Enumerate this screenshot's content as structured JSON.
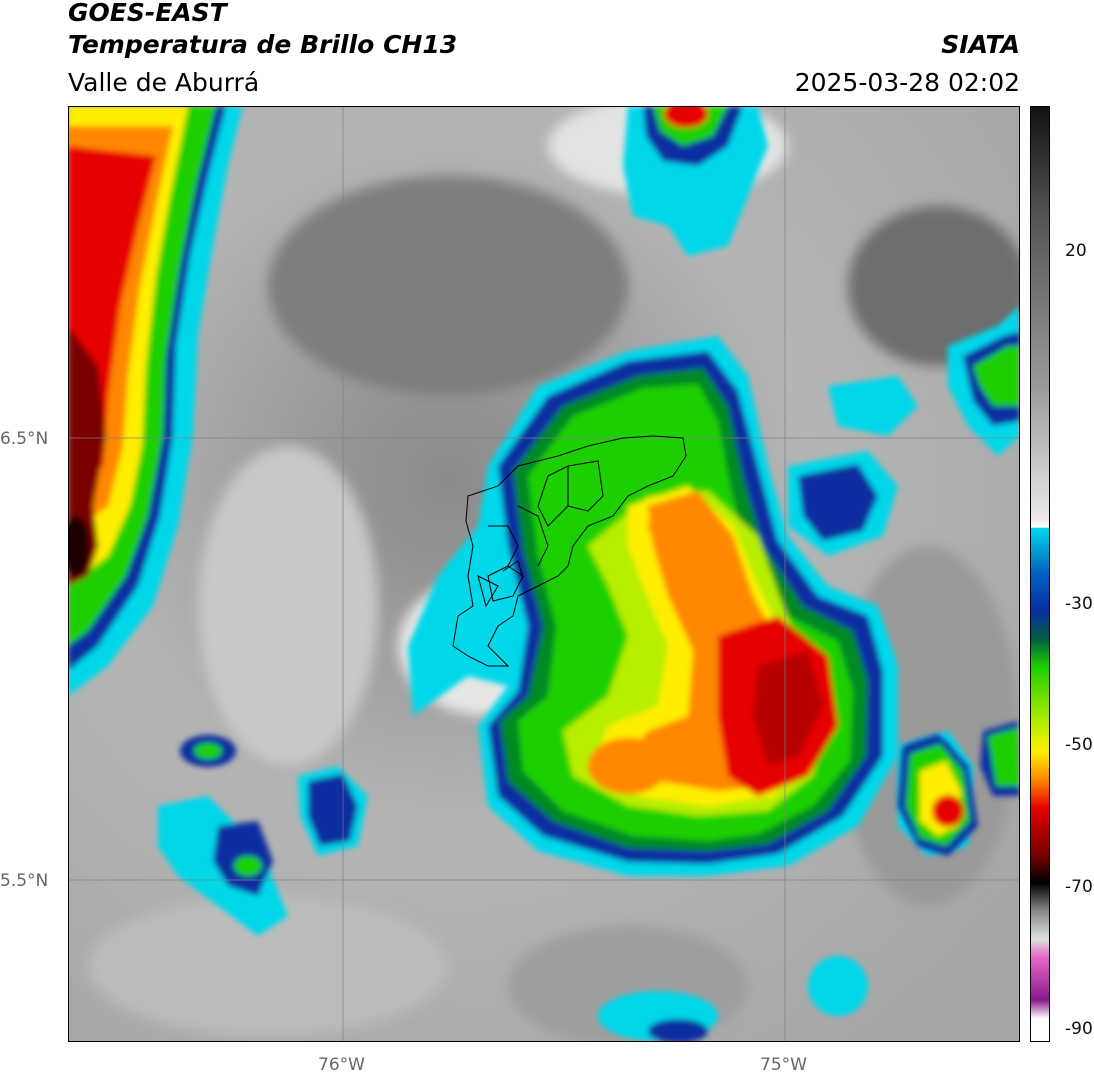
{
  "header": {
    "satellite": "GOES-EAST",
    "product": "Temperatura de Brillo CH13",
    "region": "Valle de Aburrá",
    "agency": "SIATA",
    "datetime": "2025-03-28 02:02"
  },
  "map": {
    "lat_labels": [
      "6.5°N",
      "5.5°N"
    ],
    "lon_labels": [
      "76°W",
      "75°W"
    ]
  },
  "colorbar": {
    "ticks": [
      "20",
      "-30",
      "-50",
      "-70",
      "-90"
    ],
    "colors": {
      "warm_gray": "#7d7d7d",
      "light_gray": "#d9d9d9",
      "cyan": "#00d8ea",
      "blue": "#0a2fa0",
      "green": "#1fd000",
      "yellow": "#ffee00",
      "orange": "#ff8800",
      "red": "#e60000",
      "dark": "#1a0000",
      "magenta": "#c44bb8"
    }
  }
}
